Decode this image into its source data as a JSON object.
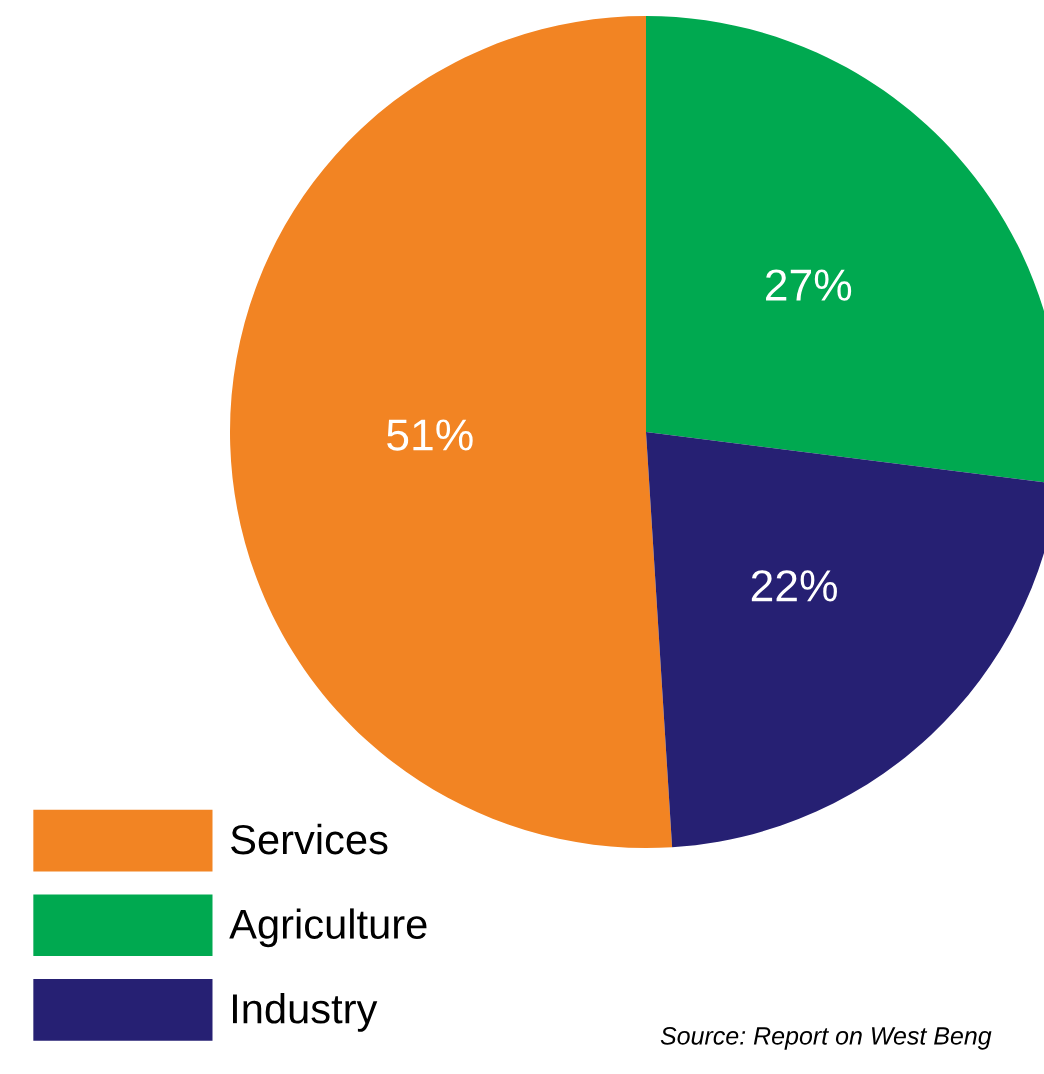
{
  "chart_data": {
    "type": "pie",
    "categories": [
      "Services",
      "Agriculture",
      "Industry"
    ],
    "values": [
      51,
      27,
      22
    ],
    "colors": [
      "#f28423",
      "#00a950",
      "#262073"
    ],
    "value_labels": [
      "51%",
      "27%",
      "22%"
    ],
    "legend": "bottom left",
    "annotations": [
      "Source: Report on West Beng"
    ]
  }
}
